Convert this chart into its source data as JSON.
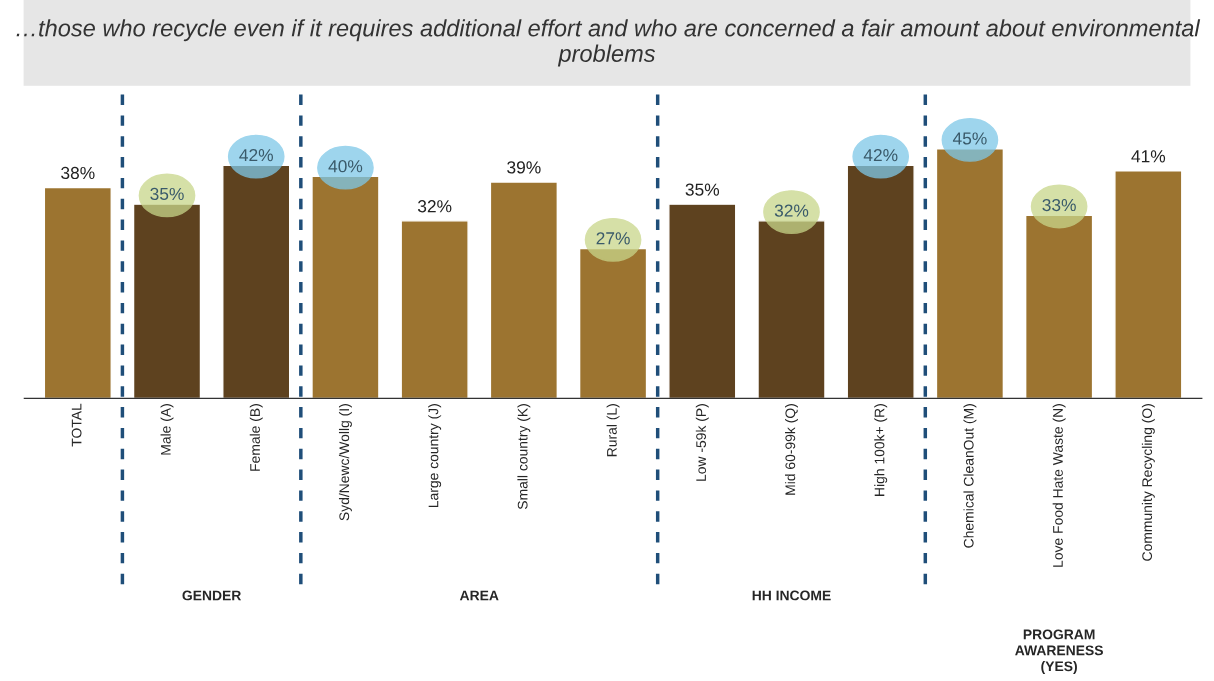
{
  "chart_data": {
    "type": "bar",
    "title": "…those who recycle even if it requires additional effort and who are concerned a fair amount about environmental problems",
    "categories": [
      "TOTAL",
      "Male (A)",
      "Female (B)",
      "Syd/Newc/Wollg (I)",
      "Large country (J)",
      "Small country (K)",
      "Rural (L)",
      "Low -59k (P)",
      "Mid 60-99k (Q)",
      "High 100k+ (R)",
      "Chemical CleanOut (M)",
      "Love Food Hate Waste (N)",
      "Community Recycling (O)"
    ],
    "values": [
      38,
      35,
      42,
      40,
      32,
      39,
      27,
      35,
      32,
      42,
      45,
      33,
      41
    ],
    "colors": [
      "#9c7430",
      "#5e421f",
      "#5e421f",
      "#9c7430",
      "#9c7430",
      "#9c7430",
      "#9c7430",
      "#5e421f",
      "#5e421f",
      "#5e421f",
      "#9c7430",
      "#9c7430",
      "#9c7430"
    ],
    "value_labels": [
      "38%",
      "35%",
      "42%",
      "40%",
      "32%",
      "39%",
      "27%",
      "35%",
      "32%",
      "42%",
      "45%",
      "33%",
      "41%"
    ],
    "annotations": [
      "GENDER",
      "AREA",
      "HH INCOME",
      "PROGRAM\nAWARENESS\n(YES)"
    ],
    "grid": false,
    "legend": false
  }
}
